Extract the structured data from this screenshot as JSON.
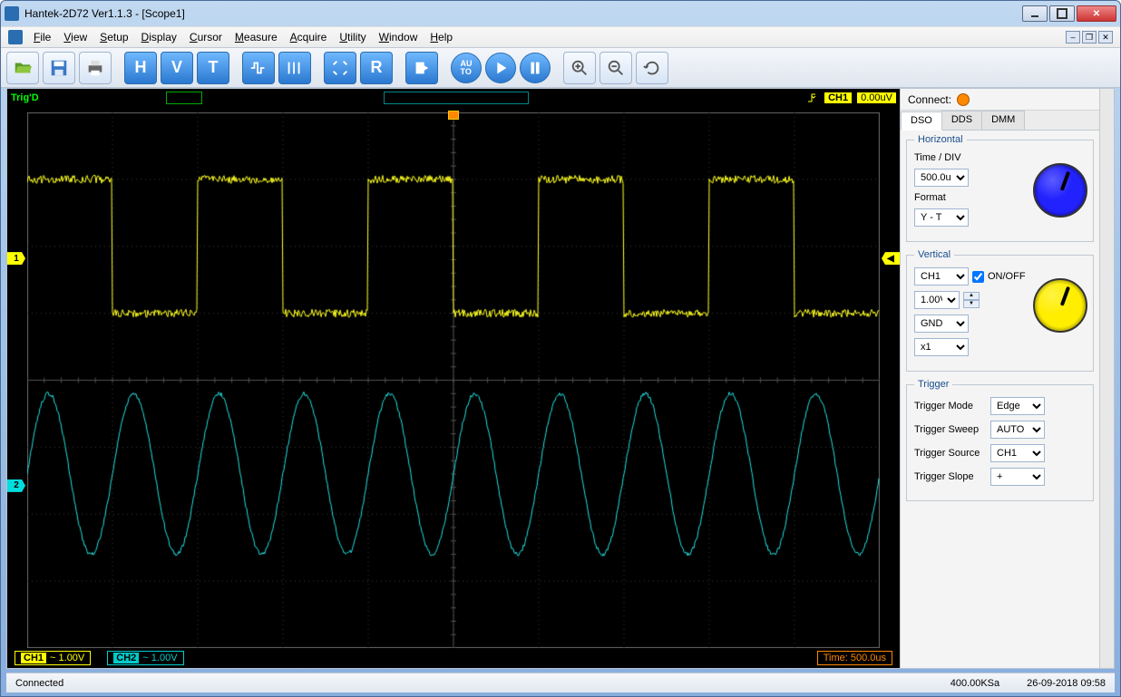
{
  "title": "Hantek-2D72 Ver1.1.3 - [Scope1]",
  "menu": [
    "File",
    "View",
    "Setup",
    "Display",
    "Cursor",
    "Measure",
    "Acquire",
    "Utility",
    "Window",
    "Help"
  ],
  "toolbar": {
    "letters": [
      "H",
      "V",
      "T"
    ],
    "reset": "R"
  },
  "scope_header": {
    "trig_status": "Trig'D",
    "channel_badge": "CH1",
    "voltage_reading": "0.00uV"
  },
  "scope_footer": {
    "ch1": {
      "tag": "CH1",
      "coupling": "~",
      "scale": "1.00V"
    },
    "ch2": {
      "tag": "CH2",
      "coupling": "~",
      "scale": "1.00V"
    },
    "timebase": "Time: 500.0us"
  },
  "side": {
    "connect_label": "Connect:",
    "connect_state_color": "#ff8800",
    "tabs": [
      "DSO",
      "DDS",
      "DMM"
    ],
    "active_tab": 0,
    "horizontal": {
      "legend": "Horizontal",
      "time_div_label": "Time / DIV",
      "time_div_value": "500.0us",
      "format_label": "Format",
      "format_value": "Y - T",
      "knob_color": "#2030e0"
    },
    "vertical": {
      "legend": "Vertical",
      "channel": "CH1",
      "onoff_label": "ON/OFF",
      "onoff_checked": true,
      "volts_div": "1.00V",
      "coupling": "GND",
      "probe": "x1",
      "knob_color": "#ffee00"
    },
    "trigger": {
      "legend": "Trigger",
      "rows": [
        {
          "label": "Trigger Mode",
          "value": "Edge"
        },
        {
          "label": "Trigger Sweep",
          "value": "AUTO"
        },
        {
          "label": "Trigger Source",
          "value": "CH1"
        },
        {
          "label": "Trigger Slope",
          "value": "+"
        }
      ]
    }
  },
  "status": {
    "left": "Connected",
    "sample_rate": "400.00KSa",
    "datetime": "26-09-2018  09:58"
  },
  "waveforms": {
    "grid": {
      "cols": 10,
      "rows": 8,
      "color": "#3a3a3a",
      "center_color": "#505050"
    },
    "ch1": {
      "color": "#ffff20",
      "type": "square",
      "amplitude_divs": 1.0,
      "offset_divs": 2.0,
      "period_divs": 2.0,
      "duty": 0.5,
      "noise": 0.06
    },
    "ch2": {
      "color": "#20e0e0",
      "type": "sine",
      "amplitude_divs": 1.2,
      "offset_divs": -1.4,
      "period_divs": 1.0,
      "noise": 0.03
    },
    "ch1_marker_y": 0.28,
    "ch1_marker_right_y": 0.28,
    "ch2_marker_y": 0.7
  }
}
